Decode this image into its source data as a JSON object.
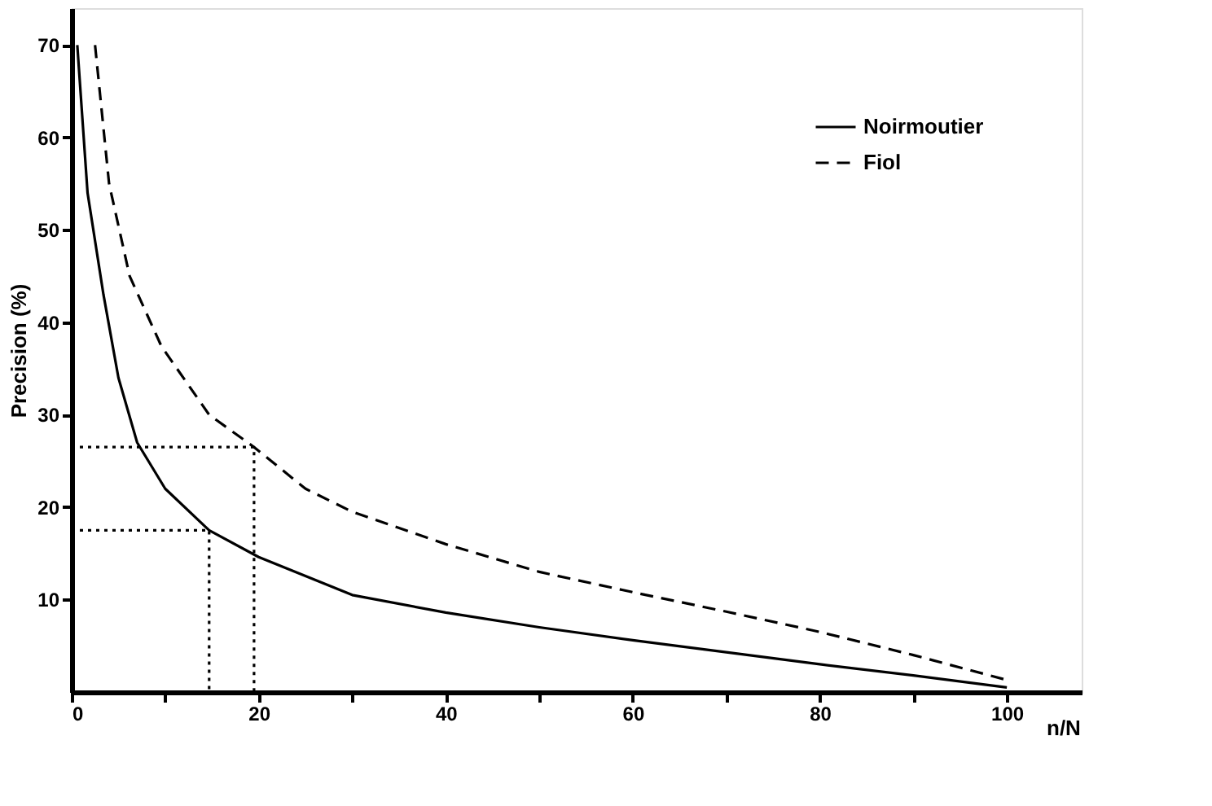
{
  "chart_data": {
    "type": "line",
    "xlabel": "n/N",
    "ylabel": "Precision   (%)",
    "xlim": [
      0,
      108
    ],
    "ylim": [
      0,
      74
    ],
    "xticks": [
      0,
      {
        "value": 10,
        "label": null
      },
      20,
      {
        "value": 30,
        "label": null
      },
      40,
      {
        "value": 50,
        "label": null
      },
      60,
      {
        "value": 70,
        "label": null
      },
      80,
      {
        "value": 90,
        "label": null
      },
      100
    ],
    "yticks": [
      10,
      20,
      30,
      40,
      50,
      60,
      70
    ],
    "grid": false,
    "legend": "top right",
    "marker": "none",
    "series": [
      {
        "name": "Noirmoutier",
        "color": "#000000",
        "line_style": "solid",
        "x": [
          0.6,
          1.7,
          3.4,
          5,
          7,
          10,
          14.7,
          20,
          30,
          40,
          50,
          60,
          70,
          80,
          90,
          100
        ],
        "values": [
          70,
          54,
          43,
          34,
          27,
          22,
          17.5,
          14.6,
          10.5,
          8.6,
          7,
          5.6,
          4.3,
          3,
          1.8,
          0.5
        ]
      },
      {
        "name": "Fiol",
        "color": "#000000",
        "line_style": "dashed",
        "x": [
          2.5,
          4,
          6.2,
          9.6,
          14.7,
          19.5,
          25,
          30,
          40,
          50,
          60,
          70,
          80,
          90,
          100
        ],
        "values": [
          70,
          55,
          45,
          37.4,
          30,
          26.5,
          22,
          19.5,
          16,
          13,
          10.8,
          8.7,
          6.5,
          4,
          1.3
        ]
      },
      {
        "color": "#000000",
        "line_style": "dotted",
        "x": [
          0,
          19.5,
          19.5
        ],
        "values": [
          26.5,
          26.5,
          0
        ]
      },
      {
        "color": "#000000",
        "line_style": "dotted",
        "x": [
          0,
          14.7,
          14.7
        ],
        "values": [
          17.5,
          17.5,
          0
        ]
      }
    ]
  }
}
